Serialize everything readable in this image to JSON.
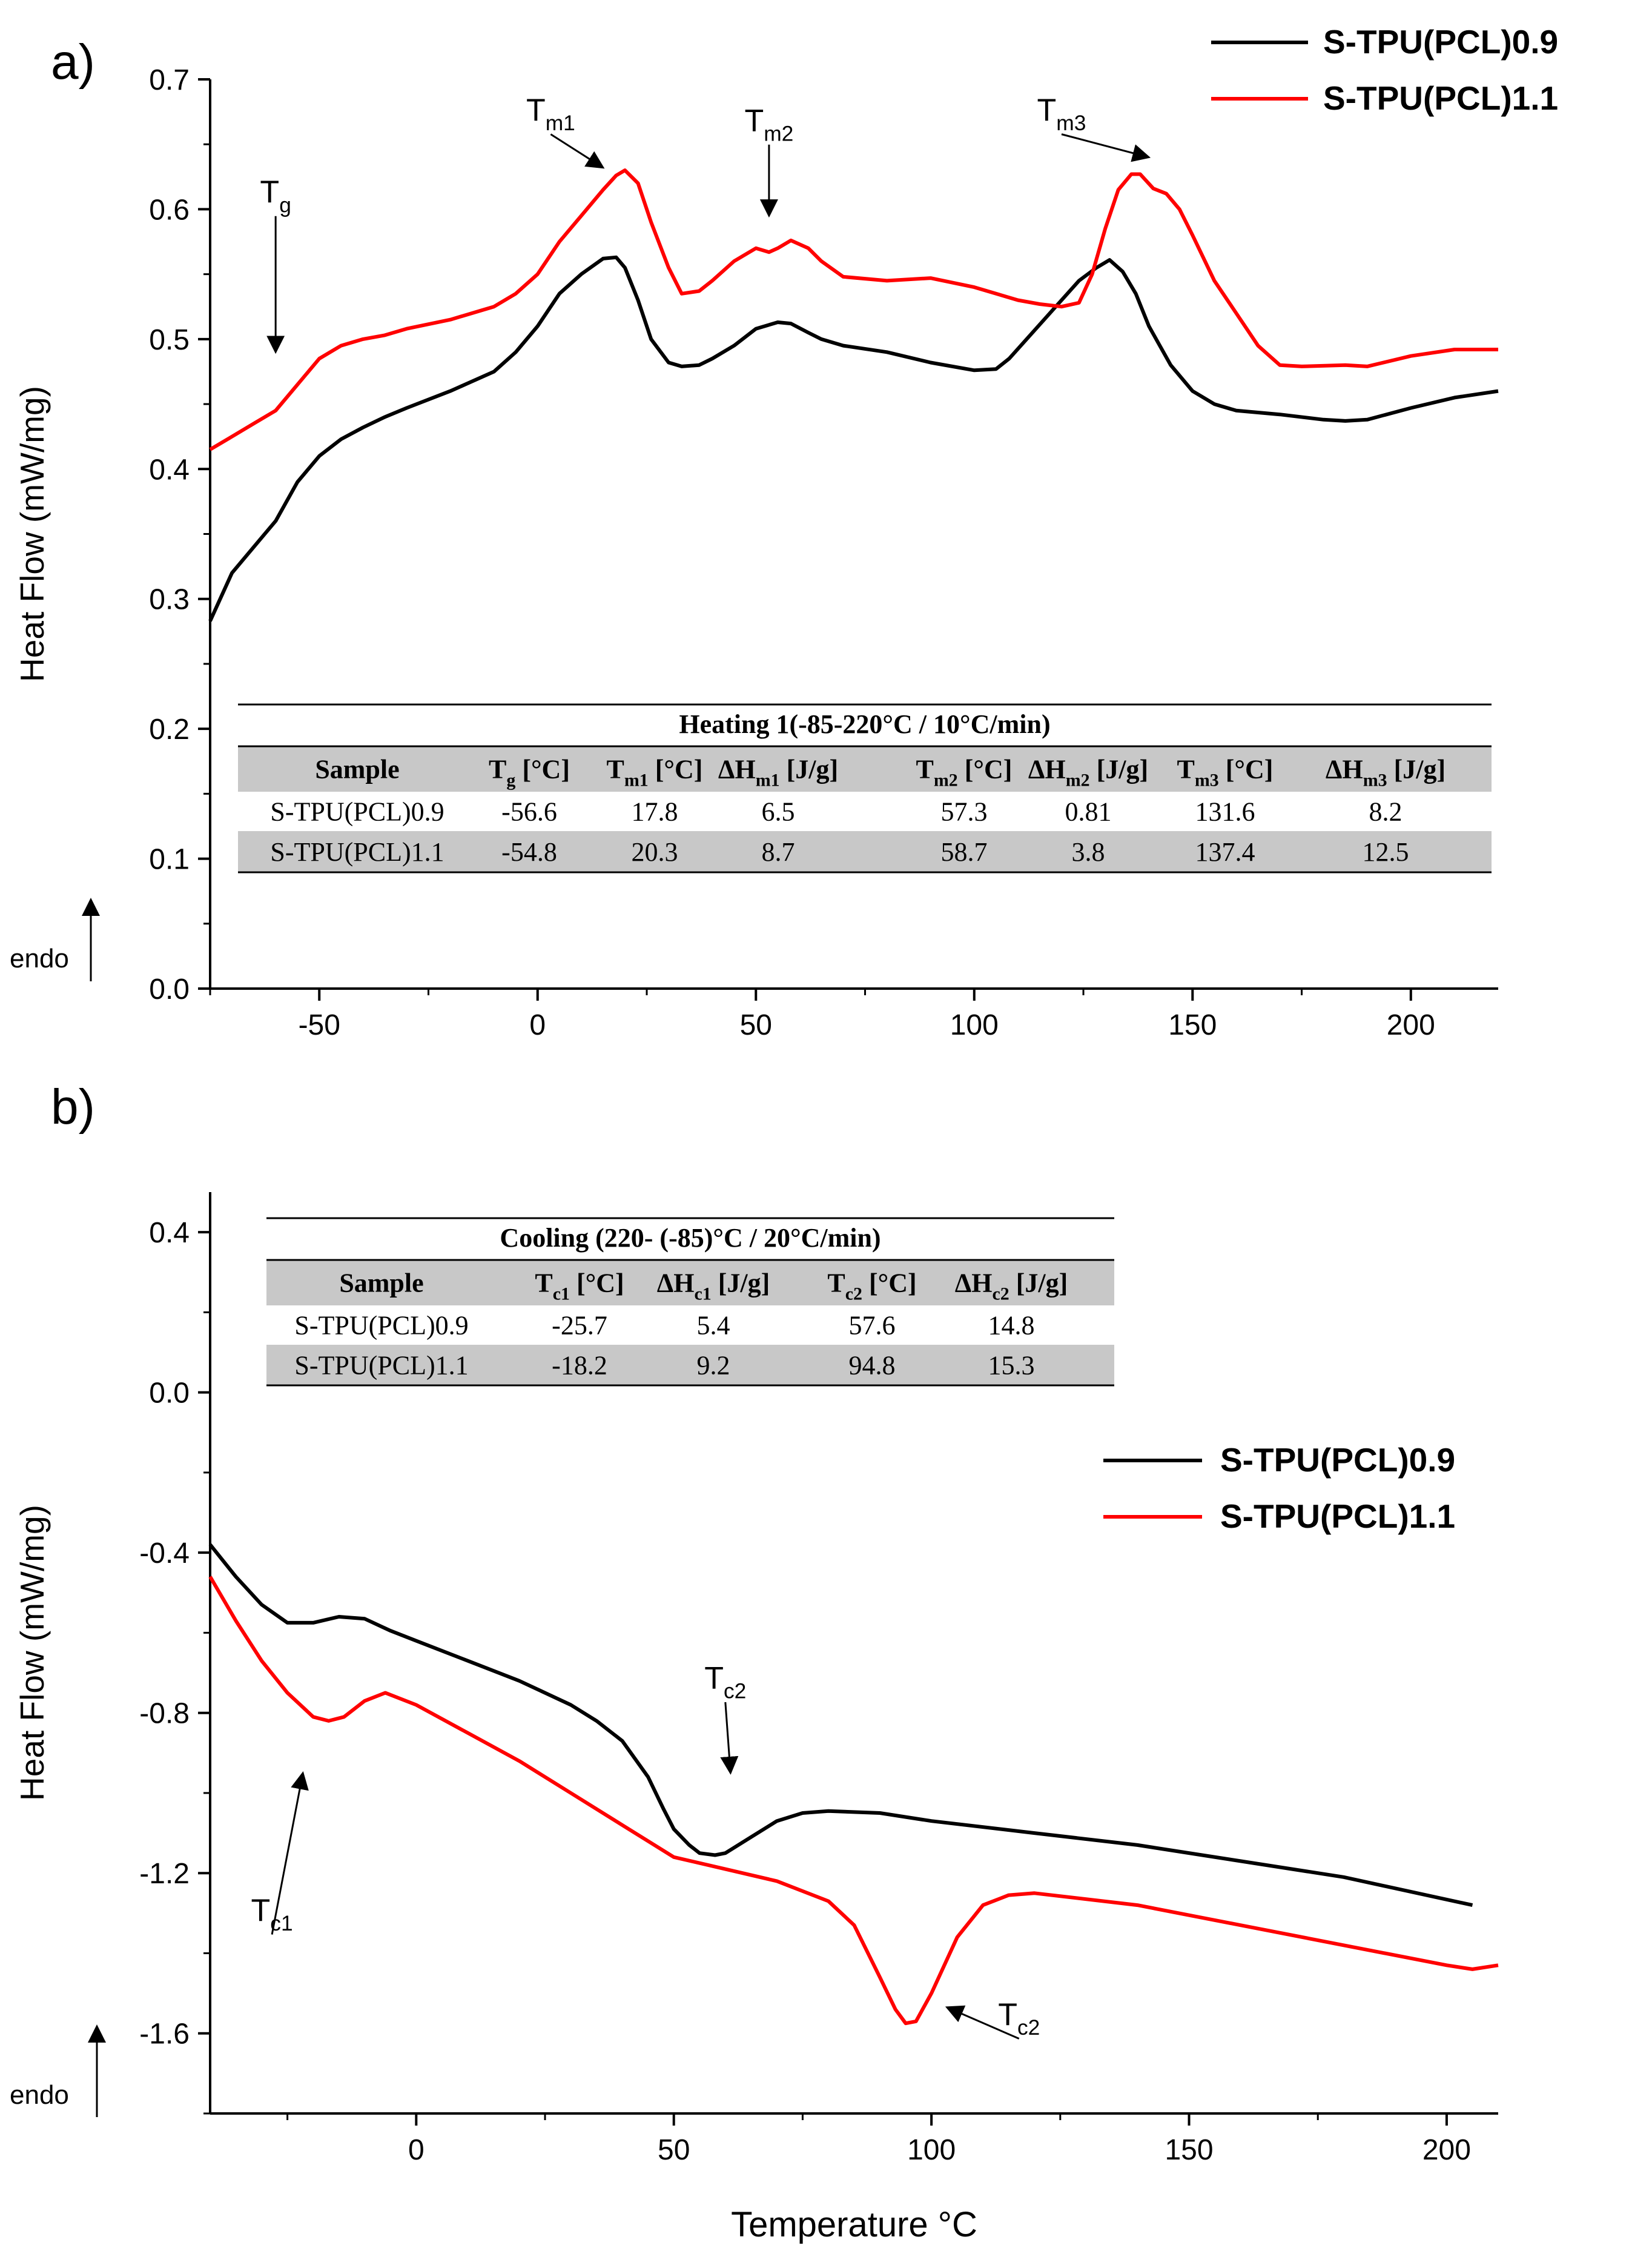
{
  "chart_data": [
    {
      "panel_label": "a)",
      "type": "line",
      "xlabel": "",
      "ylabel": "Heat Flow (mW/mg)",
      "xlim": [
        -75,
        220
      ],
      "ylim": [
        0,
        0.7
      ],
      "x_ticks": [
        -50,
        0,
        50,
        100,
        150,
        200
      ],
      "y_ticks": [
        0.0,
        0.1,
        0.2,
        0.3,
        0.4,
        0.5,
        0.6,
        0.7
      ],
      "y_tick_decimals": 1,
      "grid": false,
      "legend": "top-right",
      "endo_label": "endo",
      "series": [
        {
          "name": "S-TPU(PCL)0.9",
          "color": "#000000",
          "x": [
            -75,
            -70,
            -65,
            -60,
            -55,
            -50,
            -45,
            -40,
            -35,
            -30,
            -20,
            -10,
            -5,
            0,
            5,
            10,
            15,
            18,
            20,
            23,
            26,
            30,
            33,
            37,
            40,
            45,
            50,
            55,
            58,
            62,
            65,
            70,
            80,
            90,
            100,
            105,
            108,
            112,
            116,
            120,
            124,
            128,
            131,
            134,
            137,
            140,
            145,
            150,
            155,
            160,
            170,
            180,
            185,
            190,
            200,
            210,
            220
          ],
          "y": [
            0.283,
            0.32,
            0.34,
            0.36,
            0.39,
            0.41,
            0.423,
            0.432,
            0.44,
            0.447,
            0.46,
            0.475,
            0.49,
            0.51,
            0.535,
            0.55,
            0.562,
            0.563,
            0.555,
            0.53,
            0.5,
            0.482,
            0.479,
            0.48,
            0.485,
            0.495,
            0.508,
            0.513,
            0.512,
            0.505,
            0.5,
            0.495,
            0.49,
            0.482,
            0.476,
            0.477,
            0.485,
            0.5,
            0.515,
            0.53,
            0.545,
            0.555,
            0.561,
            0.552,
            0.535,
            0.51,
            0.48,
            0.46,
            0.45,
            0.445,
            0.442,
            0.438,
            0.437,
            0.438,
            0.447,
            0.455,
            0.46
          ]
        },
        {
          "name": "S-TPU(PCL)1.1",
          "color": "#ff0000",
          "x": [
            -75,
            -70,
            -65,
            -60,
            -55,
            -50,
            -45,
            -40,
            -35,
            -30,
            -20,
            -10,
            -5,
            0,
            5,
            10,
            15,
            18,
            20,
            23,
            26,
            30,
            33,
            37,
            40,
            45,
            48,
            50,
            53,
            55,
            58,
            62,
            65,
            70,
            80,
            90,
            100,
            110,
            115,
            120,
            124,
            127,
            130,
            133,
            136,
            138,
            141,
            144,
            147,
            150,
            155,
            160,
            165,
            170,
            175,
            185,
            190,
            200,
            210,
            220
          ],
          "y": [
            0.415,
            0.425,
            0.435,
            0.445,
            0.465,
            0.485,
            0.495,
            0.5,
            0.503,
            0.508,
            0.515,
            0.525,
            0.535,
            0.55,
            0.575,
            0.595,
            0.615,
            0.626,
            0.63,
            0.62,
            0.59,
            0.555,
            0.535,
            0.537,
            0.545,
            0.56,
            0.566,
            0.57,
            0.567,
            0.57,
            0.576,
            0.57,
            0.56,
            0.548,
            0.545,
            0.547,
            0.54,
            0.53,
            0.527,
            0.525,
            0.528,
            0.55,
            0.585,
            0.615,
            0.627,
            0.627,
            0.616,
            0.612,
            0.6,
            0.58,
            0.545,
            0.52,
            0.495,
            0.48,
            0.479,
            0.48,
            0.479,
            0.487,
            0.492,
            0.492
          ]
        }
      ],
      "annotations": [
        {
          "base": "T",
          "sub": "g",
          "x": -60,
          "y": 0.605,
          "arrow_to": [
            -60,
            0.49
          ]
        },
        {
          "base": "T",
          "sub": "m1",
          "x": 3,
          "y": 0.668,
          "arrow_to": [
            15,
            0.632
          ]
        },
        {
          "base": "T",
          "sub": "m2",
          "x": 53,
          "y": 0.66,
          "arrow_to": [
            53,
            0.595
          ]
        },
        {
          "base": "T",
          "sub": "m3",
          "x": 120,
          "y": 0.668,
          "arrow_to": [
            140,
            0.64
          ]
        }
      ],
      "table": {
        "title": "Heating 1(-85-220°C / 10°C/min)",
        "columns": [
          {
            "base": "Sample",
            "sub": "",
            "unit": ""
          },
          {
            "base": "T",
            "sub": "g",
            "unit": " [°C]"
          },
          {
            "base": "T",
            "sub": "m1",
            "unit": " [°C]"
          },
          {
            "base": "ΔH",
            "sub": "m1",
            "unit": " [J/g]"
          },
          {
            "base": "T",
            "sub": "m2",
            "unit": " [°C]"
          },
          {
            "base": "ΔH",
            "sub": "m2",
            "unit": " [J/g]"
          },
          {
            "base": "T",
            "sub": "m3",
            "unit": " [°C]"
          },
          {
            "base": "ΔH",
            "sub": "m3",
            "unit": " [J/g]"
          }
        ],
        "rows": [
          [
            "S-TPU(PCL)0.9",
            "-56.6",
            "17.8",
            "6.5",
            "57.3",
            "0.81",
            "131.6",
            "8.2"
          ],
          [
            "S-TPU(PCL)1.1",
            "-54.8",
            "20.3",
            "8.7",
            "58.7",
            "3.8",
            "137.4",
            "12.5"
          ]
        ]
      }
    },
    {
      "panel_label": "b)",
      "type": "line",
      "xlabel": "Temperature °C",
      "ylabel": "Heat Flow (mW/mg)",
      "xlim": [
        -40,
        210
      ],
      "ylim": [
        -1.8,
        0.5
      ],
      "x_ticks": [
        0,
        50,
        100,
        150,
        200
      ],
      "y_ticks": [
        -1.6,
        -1.2,
        -0.8,
        -0.4,
        0.0,
        0.4
      ],
      "y_tick_decimals": 1,
      "grid": false,
      "legend": "right",
      "endo_label": "endo",
      "series": [
        {
          "name": "S-TPU(PCL)0.9",
          "color": "#000000",
          "x": [
            -40,
            -35,
            -30,
            -25,
            -20,
            -15,
            -10,
            -5,
            0,
            10,
            20,
            30,
            35,
            40,
            45,
            48,
            50,
            53,
            55,
            58,
            60,
            65,
            70,
            75,
            80,
            90,
            100,
            120,
            140,
            160,
            180,
            205
          ],
          "y": [
            -0.38,
            -0.46,
            -0.53,
            -0.575,
            -0.575,
            -0.56,
            -0.565,
            -0.595,
            -0.62,
            -0.67,
            -0.72,
            -0.78,
            -0.82,
            -0.87,
            -0.96,
            -1.04,
            -1.09,
            -1.13,
            -1.15,
            -1.155,
            -1.15,
            -1.11,
            -1.07,
            -1.05,
            -1.045,
            -1.05,
            -1.07,
            -1.1,
            -1.13,
            -1.17,
            -1.21,
            -1.28
          ]
        },
        {
          "name": "S-TPU(PCL)1.1",
          "color": "#ff0000",
          "x": [
            -40,
            -35,
            -30,
            -25,
            -20,
            -17,
            -14,
            -10,
            -6,
            0,
            10,
            20,
            30,
            40,
            50,
            60,
            70,
            80,
            85,
            90,
            93,
            95,
            97,
            100,
            105,
            110,
            115,
            120,
            140,
            160,
            180,
            200,
            205,
            210
          ],
          "y": [
            -0.46,
            -0.57,
            -0.67,
            -0.75,
            -0.81,
            -0.82,
            -0.81,
            -0.77,
            -0.75,
            -0.78,
            -0.85,
            -0.92,
            -1.0,
            -1.08,
            -1.16,
            -1.19,
            -1.22,
            -1.27,
            -1.33,
            -1.46,
            -1.54,
            -1.575,
            -1.57,
            -1.5,
            -1.36,
            -1.28,
            -1.255,
            -1.25,
            -1.28,
            -1.33,
            -1.38,
            -1.43,
            -1.44,
            -1.43
          ]
        }
      ],
      "annotations": [
        {
          "base": "T",
          "sub": "c2",
          "x": 60,
          "y": -0.74,
          "arrow_to": [
            61,
            -0.95
          ]
        },
        {
          "base": "T",
          "sub": "c1",
          "x": -28,
          "y": -1.32,
          "arrow_to": [
            -22,
            -0.95
          ]
        },
        {
          "base": "T",
          "sub": "c2",
          "x": 117,
          "y": -1.58,
          "arrow_to": [
            103,
            -1.535
          ]
        }
      ],
      "table": {
        "title": "Cooling (220- (-85)°C / 20°C/min)",
        "columns": [
          {
            "base": "Sample",
            "sub": "",
            "unit": ""
          },
          {
            "base": "T",
            "sub": "c1",
            "unit": " [°C]"
          },
          {
            "base": "ΔH",
            "sub": "c1",
            "unit": " [J/g]"
          },
          {
            "base": "T",
            "sub": "c2",
            "unit": " [°C]"
          },
          {
            "base": "ΔH",
            "sub": "c2",
            "unit": " [J/g]"
          }
        ],
        "rows": [
          [
            "S-TPU(PCL)0.9",
            "-25.7",
            "5.4",
            "57.6",
            "14.8"
          ],
          [
            "S-TPU(PCL)1.1",
            "-18.2",
            "9.2",
            "94.8",
            "15.3"
          ]
        ]
      }
    }
  ]
}
